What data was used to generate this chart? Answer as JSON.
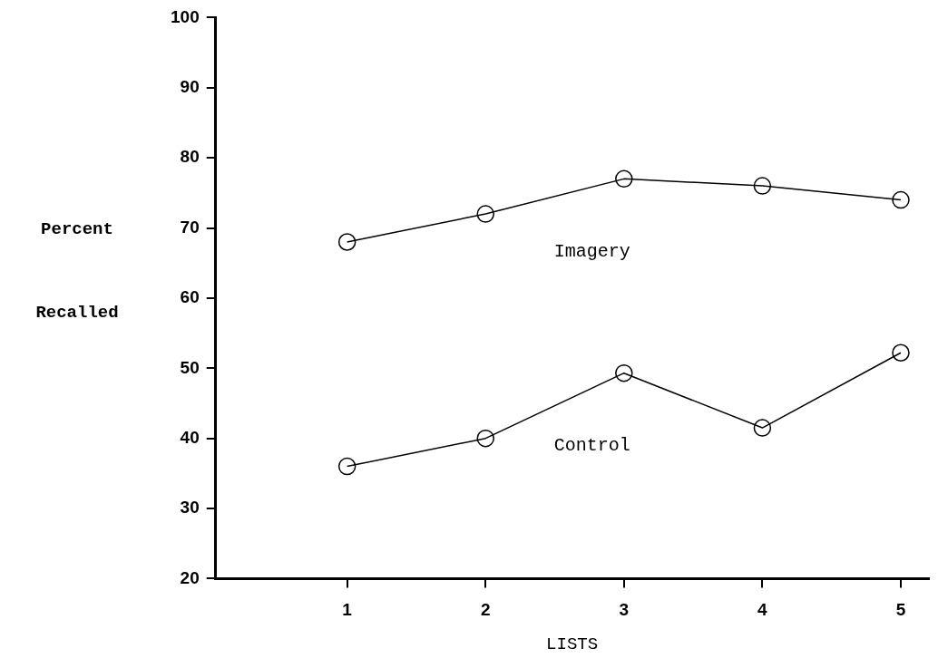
{
  "chart_data": {
    "type": "line",
    "xlabel": "LISTS",
    "ylabel": "Percent Recalled",
    "x": [
      1,
      2,
      3,
      4,
      5
    ],
    "series": [
      {
        "name": "Imagery",
        "color": "#000000",
        "values": [
          68,
          72,
          77,
          76,
          74
        ]
      },
      {
        "name": "Control",
        "color": "#000000",
        "values": [
          36,
          40,
          49.3,
          41.5,
          52.2
        ]
      }
    ],
    "xlim": [
      0.05,
      5.2
    ],
    "xticks": [
      1,
      2,
      3,
      4,
      5
    ],
    "ylim": [
      20,
      100
    ],
    "yticks": [
      20,
      30,
      40,
      50,
      60,
      70,
      80,
      90,
      100
    ],
    "marker": "circle",
    "line_style": "solid",
    "grid": false,
    "legend": false
  }
}
